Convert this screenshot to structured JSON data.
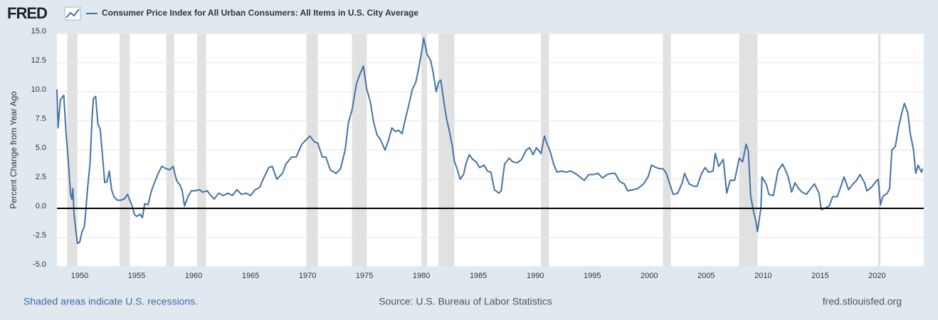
{
  "chart_data": {
    "type": "line",
    "logo": "FRED",
    "title": "Consumer Price Index for All Urban Consumers: All Items in U.S. City Average",
    "y_label": "Percent Change from Year Ago",
    "note": "Shaded areas indicate U.S. recessions.",
    "source": "Source: U.S. Bureau of Labor Statistics",
    "site": "fred.stlouisfed.org",
    "xlim": [
      1948.0,
      2024.1
    ],
    "ylim": [
      -5,
      15
    ],
    "xticks": [
      1950,
      1955,
      1960,
      1965,
      1970,
      1975,
      1980,
      1985,
      1990,
      1995,
      2000,
      2005,
      2010,
      2015,
      2020
    ],
    "yticks": [
      {
        "value": -5,
        "label": "-5.0"
      },
      {
        "value": -2.5,
        "label": "-2.5"
      },
      {
        "value": 0,
        "label": "0.0"
      },
      {
        "value": 2.5,
        "label": "2.5"
      },
      {
        "value": 5,
        "label": "5.0"
      },
      {
        "value": 7.5,
        "label": "7.5"
      },
      {
        "value": 10,
        "label": "10.0"
      },
      {
        "value": 12.5,
        "label": "12.5"
      },
      {
        "value": 15,
        "label": "15.0"
      }
    ],
    "grid": true,
    "recessions": [
      [
        1948.9,
        1949.8
      ],
      [
        1953.5,
        1954.4
      ],
      [
        1957.6,
        1958.3
      ],
      [
        1960.3,
        1961.1
      ],
      [
        1969.9,
        1970.9
      ],
      [
        1973.9,
        1975.2
      ],
      [
        1980.0,
        1980.5
      ],
      [
        1981.5,
        1982.9
      ],
      [
        1990.5,
        1991.2
      ],
      [
        2001.2,
        2001.9
      ],
      [
        2007.9,
        2009.5
      ],
      [
        2020.1,
        2020.3
      ]
    ],
    "x": [
      1948.0,
      1948.1,
      1948.3,
      1948.6,
      1948.8,
      1949.0,
      1949.2,
      1949.3,
      1949.4,
      1949.5,
      1949.7,
      1949.8,
      1950.0,
      1950.2,
      1950.4,
      1950.5,
      1950.7,
      1950.9,
      1951.1,
      1951.2,
      1951.4,
      1951.6,
      1951.8,
      1952.0,
      1952.2,
      1952.4,
      1952.6,
      1952.8,
      1953.0,
      1953.3,
      1953.6,
      1953.9,
      1954.2,
      1954.4,
      1954.6,
      1954.8,
      1955.0,
      1955.3,
      1955.5,
      1955.7,
      1956.0,
      1956.3,
      1956.6,
      1956.9,
      1957.2,
      1957.6,
      1957.9,
      1958.2,
      1958.5,
      1958.8,
      1959.0,
      1959.2,
      1959.5,
      1959.8,
      1960.1,
      1960.5,
      1960.8,
      1961.2,
      1961.5,
      1961.8,
      1962.2,
      1962.6,
      1963.0,
      1963.4,
      1963.8,
      1964.2,
      1964.6,
      1965.0,
      1965.4,
      1965.8,
      1966.1,
      1966.6,
      1966.9,
      1967.3,
      1967.8,
      1968.1,
      1968.6,
      1969.0,
      1969.5,
      1970.0,
      1970.2,
      1970.6,
      1970.9,
      1971.3,
      1971.6,
      1972.0,
      1972.5,
      1972.9,
      1973.3,
      1973.6,
      1973.9,
      1974.3,
      1974.6,
      1974.9,
      1975.2,
      1975.5,
      1975.8,
      1976.1,
      1976.4,
      1976.8,
      1977.1,
      1977.4,
      1977.7,
      1978.0,
      1978.3,
      1978.6,
      1978.9,
      1979.2,
      1979.5,
      1979.8,
      1980.1,
      1980.2,
      1980.5,
      1980.8,
      1981.0,
      1981.3,
      1981.5,
      1981.7,
      1981.9,
      1982.2,
      1982.5,
      1982.7,
      1982.9,
      1983.1,
      1983.4,
      1983.7,
      1983.9,
      1984.2,
      1984.5,
      1984.8,
      1985.1,
      1985.5,
      1985.8,
      1986.1,
      1986.4,
      1986.8,
      1987.0,
      1987.3,
      1987.7,
      1988.0,
      1988.4,
      1988.8,
      1989.2,
      1989.5,
      1989.8,
      1990.1,
      1990.5,
      1990.8,
      1991.0,
      1991.3,
      1991.6,
      1991.9,
      1992.3,
      1992.7,
      1993.1,
      1993.5,
      1993.9,
      1994.3,
      1994.7,
      1995.1,
      1995.5,
      1995.9,
      1996.3,
      1996.7,
      1997.0,
      1997.4,
      1997.8,
      1998.1,
      1998.6,
      1999.0,
      1999.5,
      1999.9,
      2000.2,
      2000.6,
      2000.9,
      2001.2,
      2001.5,
      2001.8,
      2002.1,
      2002.5,
      2002.9,
      2003.1,
      2003.5,
      2003.9,
      2004.2,
      2004.6,
      2004.9,
      2005.2,
      2005.6,
      2005.8,
      2006.1,
      2006.5,
      2006.8,
      2007.1,
      2007.5,
      2007.9,
      2008.2,
      2008.5,
      2008.7,
      2008.9,
      2009.1,
      2009.4,
      2009.5,
      2009.8,
      2009.9,
      2010.3,
      2010.5,
      2010.9,
      2011.3,
      2011.7,
      2011.9,
      2012.2,
      2012.5,
      2012.8,
      2013.1,
      2013.4,
      2013.8,
      2014.1,
      2014.5,
      2014.9,
      2015.1,
      2015.4,
      2015.8,
      2016.1,
      2016.5,
      2016.9,
      2017.1,
      2017.5,
      2017.9,
      2018.2,
      2018.5,
      2018.9,
      2019.1,
      2019.5,
      2019.9,
      2020.1,
      2020.3,
      2020.5,
      2020.9,
      2021.1,
      2021.3,
      2021.6,
      2021.9,
      2022.2,
      2022.4,
      2022.7,
      2022.9,
      2023.2,
      2023.4,
      2023.6,
      2023.9,
      2024.0
    ],
    "series": [
      {
        "name": "Consumer Price Index for All Urban Consumers: All Items in U.S. City Average",
        "color": "#4572a7",
        "values": [
          10.2,
          6.9,
          9.3,
          9.7,
          6.5,
          4,
          1.2,
          0.8,
          1.7,
          -0.5,
          -2.2,
          -3.0,
          -2.9,
          -2.0,
          -1.6,
          -0.6,
          1.8,
          3.8,
          8.0,
          9.4,
          9.6,
          7.2,
          6.8,
          4.5,
          2.2,
          2.3,
          3.2,
          1.6,
          1.0,
          0.7,
          0.7,
          0.8,
          1.2,
          0.7,
          0.2,
          -0.5,
          -0.7,
          -0.5,
          -0.8,
          0.4,
          0.3,
          1.5,
          2.3,
          3.0,
          3.6,
          3.4,
          3.3,
          3.6,
          2.4,
          2.0,
          1.5,
          0.2,
          1.0,
          1.5,
          1.5,
          1.6,
          1.4,
          1.5,
          1.1,
          0.8,
          1.3,
          1.1,
          1.3,
          1.1,
          1.6,
          1.2,
          1.3,
          1.1,
          1.6,
          1.8,
          2.5,
          3.5,
          3.6,
          2.5,
          3.0,
          3.8,
          4.4,
          4.4,
          5.5,
          6.0,
          6.2,
          5.7,
          5.6,
          4.4,
          4.4,
          3.3,
          3.0,
          3.4,
          5.0,
          7.4,
          8.4,
          10.7,
          11.5,
          12.2,
          10.2,
          9.2,
          7.4,
          6.3,
          5.9,
          5.0,
          5.8,
          6.9,
          6.6,
          6.7,
          6.4,
          7.7,
          8.9,
          10.2,
          10.8,
          12.2,
          13.9,
          14.6,
          13.2,
          12.7,
          11.8,
          10.0,
          10.8,
          11.0,
          9.6,
          7.7,
          6.4,
          5.4,
          4.0,
          3.5,
          2.5,
          2.9,
          3.8,
          4.6,
          4.2,
          4.0,
          3.5,
          3.7,
          3.2,
          3.1,
          1.6,
          1.3,
          1.5,
          3.8,
          4.3,
          4.0,
          3.9,
          4.2,
          5.0,
          5.2,
          4.6,
          5.2,
          4.7,
          6.2,
          5.6,
          4.9,
          3.8,
          3.1,
          3.2,
          3.1,
          3.2,
          3.0,
          2.7,
          2.4,
          2.9,
          2.9,
          3.0,
          2.6,
          2.9,
          3.0,
          3.0,
          2.3,
          2.1,
          1.5,
          1.6,
          1.7,
          2.1,
          2.7,
          3.7,
          3.5,
          3.4,
          3.4,
          3.0,
          2.1,
          1.2,
          1.3,
          2.2,
          3.0,
          2.1,
          1.9,
          1.9,
          3.0,
          3.5,
          3.1,
          3.2,
          4.7,
          3.6,
          4.2,
          1.3,
          2.4,
          2.4,
          4.3,
          4.0,
          5.5,
          4.9,
          1.1,
          0.0,
          -1.3,
          -2.0,
          0.0,
          2.7,
          2.0,
          1.2,
          1.1,
          3.2,
          3.8,
          3.4,
          2.7,
          1.4,
          2.2,
          1.7,
          1.4,
          1.2,
          1.6,
          2.1,
          1.3,
          -0.1,
          0.0,
          0.2,
          1.0,
          1.0,
          2.1,
          2.7,
          1.6,
          2.1,
          2.4,
          2.9,
          2.2,
          1.5,
          1.8,
          2.3,
          2.5,
          0.3,
          1.0,
          1.3,
          1.7,
          5.0,
          5.3,
          7.0,
          8.3,
          9.0,
          8.2,
          6.5,
          5.0,
          3.0,
          3.7,
          3.1,
          3.4
        ]
      }
    ]
  }
}
